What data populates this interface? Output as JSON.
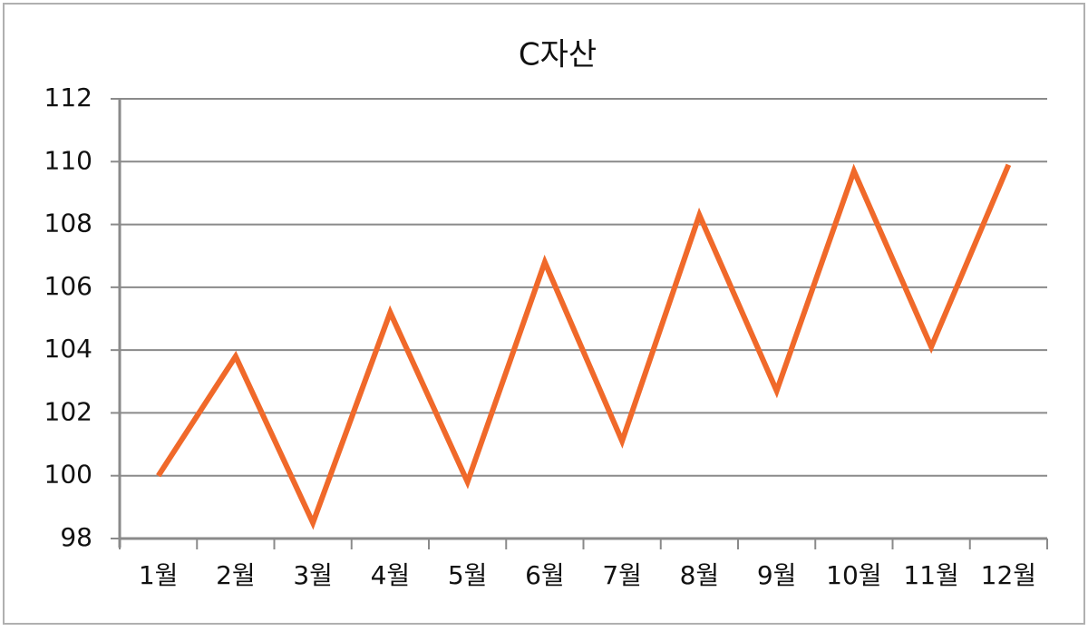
{
  "chart_data": {
    "type": "line",
    "title": "C자산",
    "categories": [
      "1월",
      "2월",
      "3월",
      "4월",
      "5월",
      "6월",
      "7월",
      "8월",
      "9월",
      "10월",
      "11월",
      "12월"
    ],
    "series": [
      {
        "name": "C자산",
        "color": "#f0692a",
        "values": [
          100.0,
          103.8,
          98.5,
          105.2,
          99.8,
          106.8,
          101.1,
          108.3,
          102.7,
          109.7,
          104.1,
          109.9
        ]
      }
    ],
    "ylim": [
      98,
      112
    ],
    "yticks": [
      98,
      100,
      102,
      104,
      106,
      108,
      110,
      112
    ],
    "grid": true
  }
}
